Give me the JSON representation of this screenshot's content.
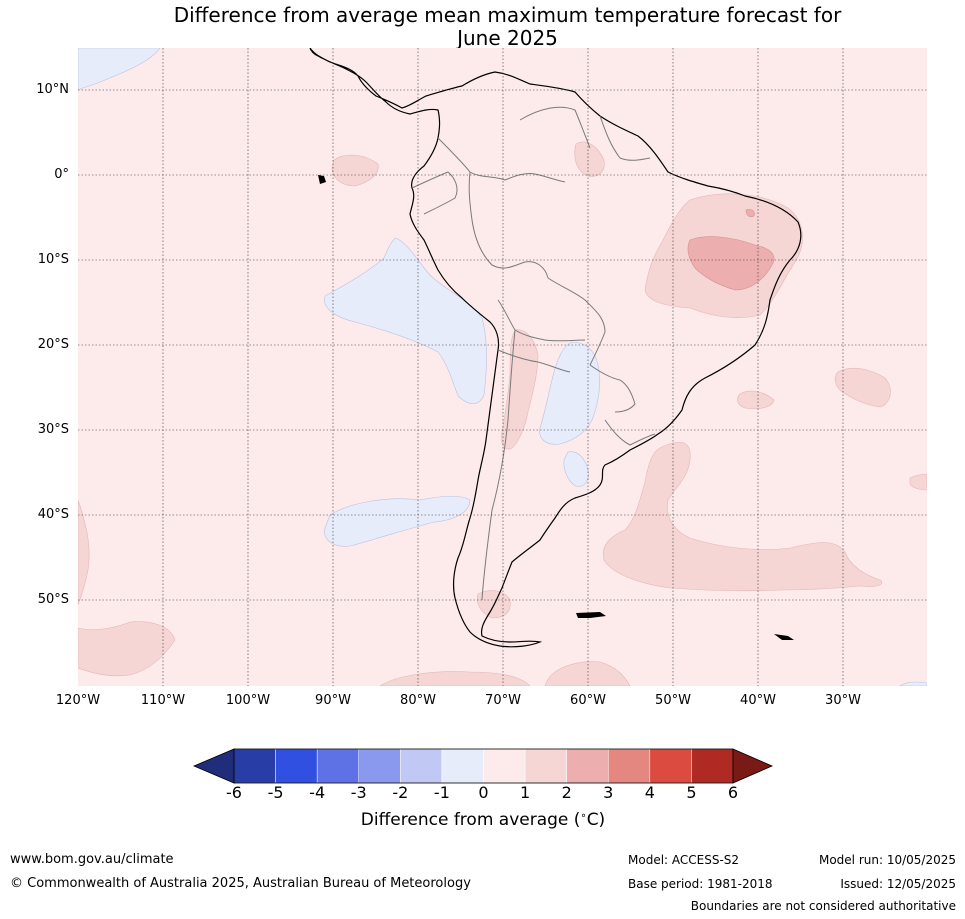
{
  "title": {
    "line1": "Difference from average mean maximum temperature forecast for",
    "line2": "June 2025"
  },
  "map": {
    "latitude_labels": [
      "10°N",
      "0°",
      "10°S",
      "20°S",
      "30°S",
      "40°S",
      "50°S"
    ],
    "longitude_labels": [
      "120°W",
      "110°W",
      "100°W",
      "90°W",
      "80°W",
      "70°W",
      "60°W",
      "50°W",
      "40°W",
      "30°W"
    ],
    "extent": {
      "lon": [
        -120,
        -20
      ],
      "lat": [
        -60,
        15
      ]
    },
    "background_category": "0 to 1",
    "anomaly_regions": [
      {
        "label": "Central Pacific west of Ecuador to Chile",
        "category": "-1 to 0"
      },
      {
        "label": "Pacific off southern Chile",
        "category": "-1 to 0"
      },
      {
        "label": "Paraguay / northern Argentina",
        "category": "-1 to 0"
      },
      {
        "label": "Eastern Brazil",
        "category": "1 to 2"
      },
      {
        "label": "Northeast Brazil interior",
        "category": "2 to 3"
      },
      {
        "label": "South Atlantic east of Argentina",
        "category": "1 to 2"
      },
      {
        "label": "Andes / Bolivia",
        "category": "1 to 2"
      },
      {
        "label": "Far southeast Pacific",
        "category": "1 to 2"
      }
    ]
  },
  "colorbar": {
    "ticks": [
      "-6",
      "-5",
      "-4",
      "-3",
      "-2",
      "-1",
      "0",
      "1",
      "2",
      "3",
      "4",
      "5",
      "6"
    ],
    "colors": [
      "#283ea6",
      "#2f50e0",
      "#5e72e5",
      "#8a98ee",
      "#c2c8f4",
      "#e7ecfb",
      "#fdebeb",
      "#f6d5d5",
      "#ecaeae",
      "#e58781",
      "#dc4b3f",
      "#ae2a23"
    ],
    "under_color": "#1f2d7a",
    "over_color": "#7a1a16",
    "label": "Difference from average (",
    "label_unit": "C)",
    "degree_symbol": "∘"
  },
  "footer": {
    "website": "www.bom.gov.au/climate",
    "copyright": "© Commonwealth of Australia 2025, Australian Bureau of Meteorology",
    "model": "Model: ACCESS-S2",
    "base_period": "Base period: 1981-2018",
    "model_run": "Model run: 10/05/2025",
    "issued": "Issued: 12/05/2025",
    "disclaimer": "Boundaries are not considered authoritative"
  }
}
